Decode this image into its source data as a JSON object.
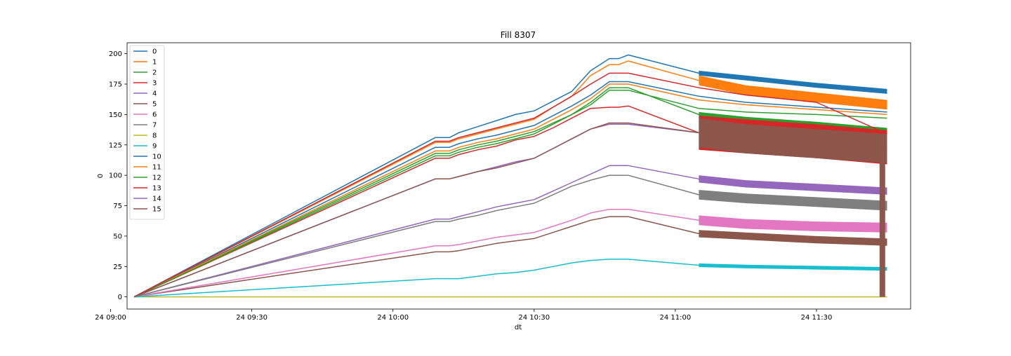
{
  "chart_data": {
    "type": "line",
    "title": "Fill 8307",
    "xlabel": "dt",
    "ylabel": "0",
    "grid": false,
    "legend_position": "top-left",
    "xlim_minutes": [
      3.5,
      170
    ],
    "ylim": [
      -10,
      209
    ],
    "x_ticks": [
      {
        "label": "24 09:00",
        "minutes": 0
      },
      {
        "label": "24 09:30",
        "minutes": 30
      },
      {
        "label": "24 10:00",
        "minutes": 60
      },
      {
        "label": "24 10:30",
        "minutes": 90
      },
      {
        "label": "24 11:00",
        "minutes": 120
      },
      {
        "label": "24 11:30",
        "minutes": 150
      }
    ],
    "y_ticks": [
      0,
      25,
      50,
      75,
      100,
      125,
      150,
      175,
      200
    ],
    "x_points": [
      "09:05",
      "10:09",
      "10:10",
      "10:12",
      "10:14",
      "10:18",
      "10:22",
      "10:26",
      "10:30",
      "10:34",
      "10:38",
      "10:42",
      "10:46",
      "10:48",
      "10:50",
      "11:05",
      "11:15",
      "11:30",
      "11:45"
    ],
    "series": [
      {
        "name": "0",
        "color": "#1f77b4",
        "band": 4,
        "values": [
          0,
          131,
          131,
          131,
          135,
          140,
          145,
          150,
          153,
          161,
          169,
          186,
          196,
          196,
          199,
          184,
          180,
          174,
          169
        ]
      },
      {
        "name": "1",
        "color": "#ff7f0e",
        "band": 8,
        "values": [
          0,
          127,
          127,
          127,
          130,
          134,
          138,
          142,
          146,
          156,
          165,
          182,
          191,
          191,
          194,
          178,
          170,
          164,
          158
        ]
      },
      {
        "name": "2",
        "color": "#2ca02c",
        "band": 4,
        "values": [
          0,
          118,
          118,
          118,
          121,
          125,
          128,
          132,
          136,
          143,
          150,
          160,
          172,
          172,
          172,
          150,
          146,
          142,
          137
        ]
      },
      {
        "name": "3",
        "color": "#d62728",
        "band": 28,
        "values": [
          0,
          114,
          114,
          114,
          117,
          121,
          124,
          129,
          132,
          139,
          147,
          155,
          156,
          156,
          157,
          135,
          132,
          128,
          123
        ]
      },
      {
        "name": "4",
        "color": "#9467bd",
        "band": 6,
        "values": [
          0,
          64,
          64,
          64,
          66,
          70,
          74,
          77,
          80,
          87,
          94,
          101,
          108,
          108,
          108,
          97,
          93,
          90,
          87
        ]
      },
      {
        "name": "5",
        "color": "#8c564b",
        "band": 6,
        "values": [
          0,
          37,
          37,
          37,
          38,
          41,
          44,
          46,
          48,
          53,
          58,
          63,
          66,
          66,
          66,
          52,
          50,
          47,
          45
        ]
      },
      {
        "name": "6",
        "color": "#e377c2",
        "band": 8,
        "values": [
          0,
          42,
          42,
          42,
          43,
          46,
          49,
          51,
          53,
          58,
          63,
          69,
          72,
          72,
          72,
          63,
          60,
          58,
          57
        ]
      },
      {
        "name": "7",
        "color": "#7f7f7f",
        "band": 8,
        "values": [
          0,
          62,
          62,
          62,
          64,
          67,
          71,
          74,
          77,
          84,
          91,
          96,
          100,
          100,
          100,
          84,
          81,
          78,
          75
        ]
      },
      {
        "name": "8",
        "color": "#bcbd22",
        "band": 0,
        "values": [
          0,
          0,
          0,
          0,
          0,
          0,
          0,
          0,
          0,
          0,
          0,
          0,
          0,
          0,
          0,
          0,
          0,
          0,
          0
        ]
      },
      {
        "name": "9",
        "color": "#17becf",
        "band": 3,
        "values": [
          0,
          15,
          15,
          15,
          15,
          17,
          19,
          20,
          22,
          25,
          28,
          30,
          31,
          31,
          31,
          26,
          25,
          24,
          23
        ]
      },
      {
        "name": "10",
        "color": "#1f77b4",
        "band": 0,
        "values": [
          0,
          123,
          123,
          123,
          126,
          130,
          133,
          137,
          141,
          149,
          157,
          166,
          177,
          177,
          177,
          165,
          160,
          156,
          152
        ]
      },
      {
        "name": "11",
        "color": "#ff7f0e",
        "band": 0,
        "values": [
          0,
          120,
          120,
          120,
          123,
          127,
          130,
          134,
          138,
          146,
          154,
          163,
          175,
          175,
          175,
          162,
          158,
          154,
          150
        ]
      },
      {
        "name": "12",
        "color": "#2ca02c",
        "band": 0,
        "values": [
          0,
          116,
          116,
          116,
          119,
          123,
          126,
          130,
          134,
          142,
          150,
          158,
          170,
          170,
          170,
          155,
          152,
          150,
          147
        ]
      },
      {
        "name": "13",
        "color": "#d62728",
        "band": 0,
        "values": [
          0,
          128,
          128,
          128,
          131,
          135,
          139,
          143,
          147,
          156,
          165,
          175,
          184,
          184,
          184,
          172,
          166,
          160,
          134
        ]
      },
      {
        "name": "14",
        "color": "#9467bd",
        "band": 0,
        "values": [
          0,
          97,
          97,
          97,
          99,
          103,
          107,
          111,
          114,
          122,
          130,
          138,
          142,
          142,
          142,
          135,
          130,
          126,
          122
        ]
      },
      {
        "name": "15",
        "color": "#8c564b",
        "band": 24,
        "values": [
          0,
          97,
          97,
          97,
          99,
          103,
          106,
          110,
          114,
          122,
          130,
          138,
          143,
          143,
          143,
          135,
          130,
          126,
          122
        ]
      }
    ]
  }
}
